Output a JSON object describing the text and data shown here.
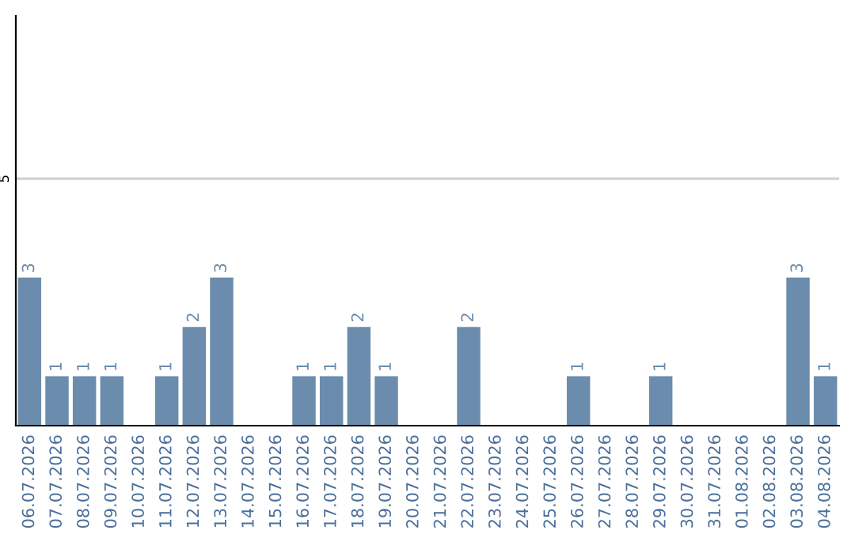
{
  "chart_data": {
    "type": "bar",
    "categories": [
      "06.07.2026",
      "07.07.2026",
      "08.07.2026",
      "09.07.2026",
      "10.07.2026",
      "11.07.2026",
      "12.07.2026",
      "13.07.2026",
      "14.07.2026",
      "15.07.2026",
      "16.07.2026",
      "17.07.2026",
      "18.07.2026",
      "19.07.2026",
      "20.07.2026",
      "21.07.2026",
      "22.07.2026",
      "23.07.2026",
      "24.07.2026",
      "25.07.2026",
      "26.07.2026",
      "27.07.2026",
      "28.07.2026",
      "29.07.2026",
      "30.07.2026",
      "31.07.2026",
      "01.08.2026",
      "02.08.2026",
      "03.08.2026",
      "04.08.2026"
    ],
    "values": [
      3,
      1,
      1,
      1,
      0,
      1,
      2,
      3,
      0,
      0,
      1,
      1,
      2,
      1,
      0,
      0,
      2,
      0,
      0,
      0,
      1,
      0,
      0,
      1,
      0,
      0,
      0,
      0,
      3,
      1
    ],
    "value_labels": [
      "3",
      "1",
      "1",
      "1",
      null,
      "1",
      "2",
      "3",
      null,
      null,
      "1",
      "1",
      "2",
      "1",
      null,
      null,
      "2",
      null,
      null,
      null,
      "1",
      null,
      null,
      "1",
      null,
      null,
      null,
      null,
      "3",
      "1"
    ],
    "color": "#6b8cad",
    "ylim": [
      0,
      8.3
    ],
    "yticks": [
      5
    ],
    "grid": "y",
    "legend": false
  }
}
